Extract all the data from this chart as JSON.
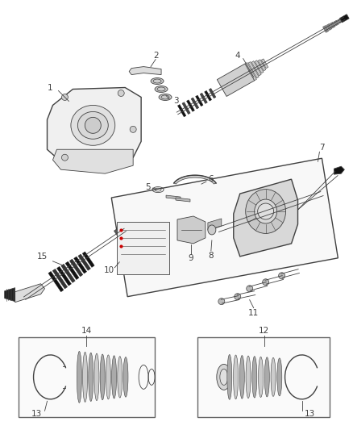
{
  "bg_color": "#ffffff",
  "line_color": "#404040",
  "fig_width": 4.38,
  "fig_height": 5.33,
  "dpi": 100
}
